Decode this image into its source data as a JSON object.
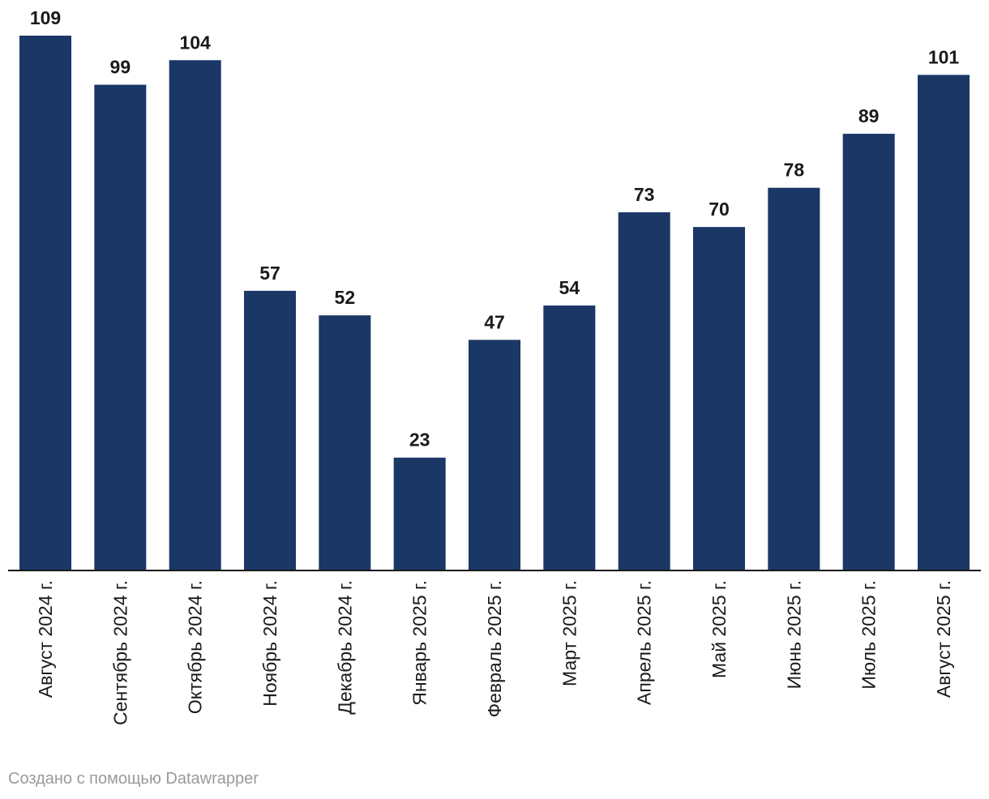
{
  "chart_data": {
    "type": "bar",
    "title": "",
    "xlabel": "",
    "ylabel": "",
    "ylim": [
      0,
      109
    ],
    "grid": false,
    "categories": [
      "Август 2024 г.",
      "Сентябрь 2024 г.",
      "Октябрь 2024 г.",
      "Ноябрь 2024 г.",
      "Декабрь 2024 г.",
      "Январь 2025 г.",
      "Февраль 2025 г.",
      "Март 2025 г.",
      "Апрель 2025 г.",
      "Май 2025 г.",
      "Июнь 2025 г.",
      "Июль 2025 г.",
      "Август 2025 г."
    ],
    "values": [
      109,
      99,
      104,
      57,
      52,
      23,
      47,
      54,
      73,
      70,
      78,
      89,
      101
    ],
    "bar_color": "#1a3766",
    "axis_color": "#1a1a1a"
  },
  "footer": {
    "credit": "Создано с помощью Datawrapper"
  }
}
